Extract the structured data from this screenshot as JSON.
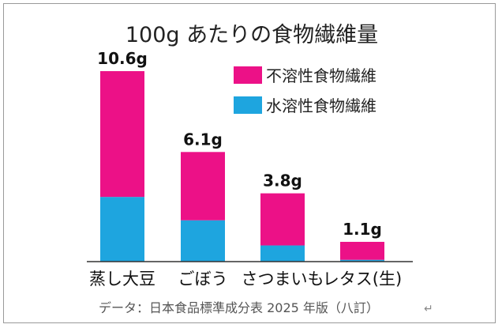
{
  "chart_data": {
    "type": "bar",
    "stacked": true,
    "title": "100g あたりの食物繊維量",
    "categories": [
      "蒸し大豆",
      "ごぼう",
      "さつまいも",
      "レタス(生)"
    ],
    "totals": [
      "10.6g",
      "6.1g",
      "3.8g",
      "1.1g"
    ],
    "series": [
      {
        "name": "水溶性食物繊維",
        "color": "#1ea5df",
        "values": [
          3.6,
          2.3,
          0.9,
          0.1
        ]
      },
      {
        "name": "不溶性食物繊維",
        "color": "#ec1187",
        "values": [
          7.0,
          3.8,
          2.9,
          1.0
        ]
      }
    ],
    "ylim": [
      0,
      10.6
    ],
    "legend_position": "top-right",
    "xlabel": "",
    "ylabel": ""
  },
  "source": "データ：日本食品標準成分表 2025 年版（八訂）",
  "return_mark": "↵"
}
